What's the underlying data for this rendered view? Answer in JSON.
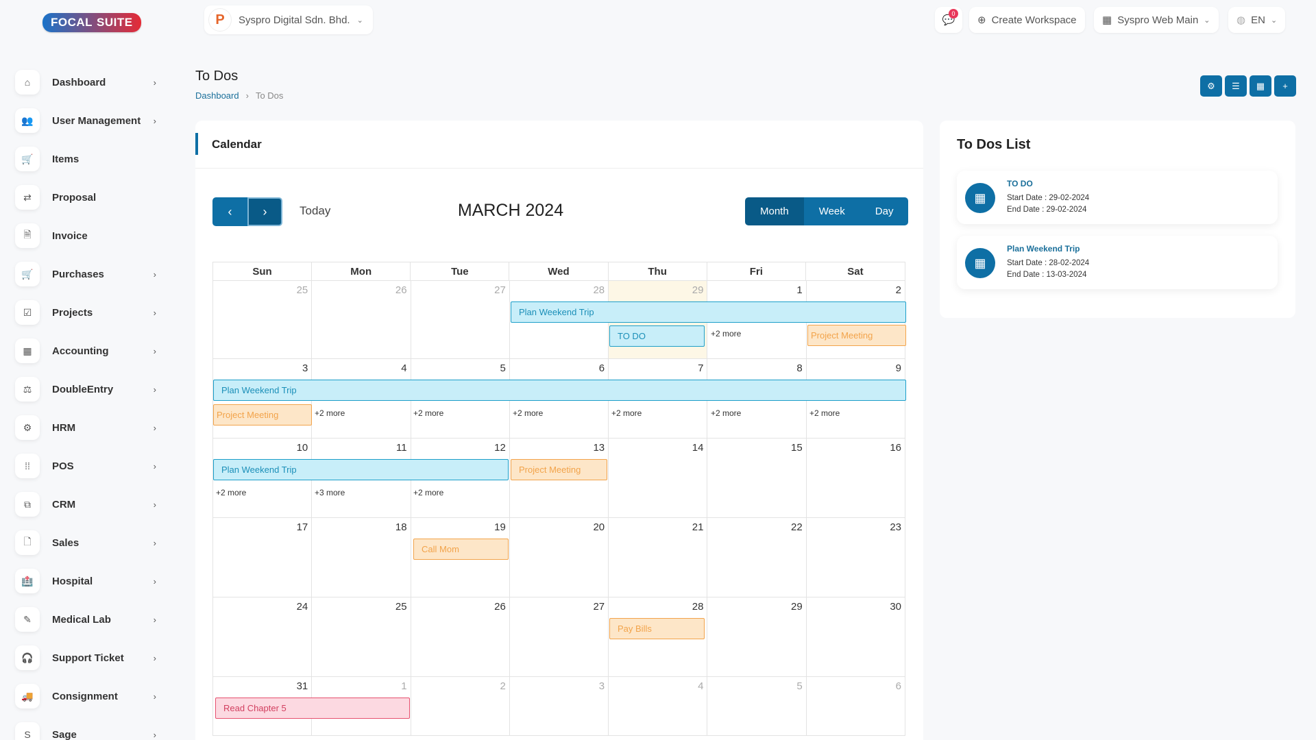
{
  "topbar": {
    "logo_left": "FOCAL",
    "logo_right": "SUITE",
    "company_name": "Syspro Digital Sdn. Bhd.",
    "message_count": "0",
    "create_workspace": "Create Workspace",
    "workspace_name": "Syspro Web Main",
    "language": "EN"
  },
  "sidebar": {
    "items": [
      {
        "label": "Dashboard",
        "icon": "home-icon"
      },
      {
        "label": "User Management",
        "icon": "users-icon"
      },
      {
        "label": "Items",
        "icon": "cart-icon"
      },
      {
        "label": "Proposal",
        "icon": "proposal-icon"
      },
      {
        "label": "Invoice",
        "icon": "invoice-icon"
      },
      {
        "label": "Purchases",
        "icon": "cart-icon"
      },
      {
        "label": "Projects",
        "icon": "checkbox-icon"
      },
      {
        "label": "Accounting",
        "icon": "grid-icon"
      },
      {
        "label": "DoubleEntry",
        "icon": "scale-icon"
      },
      {
        "label": "HRM",
        "icon": "hrm-icon"
      },
      {
        "label": "POS",
        "icon": "dots-grid-icon"
      },
      {
        "label": "CRM",
        "icon": "crm-icon"
      },
      {
        "label": "Sales",
        "icon": "document-icon"
      },
      {
        "label": "Hospital",
        "icon": "hospital-icon"
      },
      {
        "label": "Medical Lab",
        "icon": "syringe-icon"
      },
      {
        "label": "Support Ticket",
        "icon": "headset-icon"
      },
      {
        "label": "Consignment",
        "icon": "truck-icon"
      },
      {
        "label": "Sage",
        "icon": "sage-icon"
      }
    ]
  },
  "header": {
    "title": "To Dos",
    "breadcrumb_home": "Dashboard",
    "breadcrumb_sep": "›",
    "breadcrumb_current": "To Dos"
  },
  "calendar": {
    "section_title": "Calendar",
    "today_label": "Today",
    "month_title": "MARCH 2024",
    "views": {
      "month": "Month",
      "week": "Week",
      "day": "Day"
    },
    "weekdays": [
      "Sun",
      "Mon",
      "Tue",
      "Wed",
      "Thu",
      "Fri",
      "Sat"
    ],
    "weeks": [
      [
        "25",
        "26",
        "27",
        "28",
        "29",
        "1",
        "2"
      ],
      [
        "3",
        "4",
        "5",
        "6",
        "7",
        "8",
        "9"
      ],
      [
        "10",
        "11",
        "12",
        "13",
        "14",
        "15",
        "16"
      ],
      [
        "17",
        "18",
        "19",
        "20",
        "21",
        "22",
        "23"
      ],
      [
        "24",
        "25",
        "26",
        "27",
        "28",
        "29",
        "30"
      ],
      [
        "31",
        "1",
        "2",
        "3",
        "4",
        "5",
        "6"
      ]
    ],
    "events": {
      "plan_weekend_trip": "Plan Weekend Trip",
      "to_do": "TO DO",
      "project_meeting": "Project Meeting",
      "call_mom": "Call Mom",
      "pay_bills": "Pay Bills",
      "read_chapter": "Read Chapter 5"
    },
    "more": {
      "two": "+2 more",
      "three": "+3 more"
    }
  },
  "todos": {
    "title": "To Dos List",
    "items": [
      {
        "title": "TO DO",
        "start": "Start Date : 29-02-2024",
        "end": "End Date : 29-02-2024"
      },
      {
        "title": "Plan Weekend Trip",
        "start": "Start Date : 28-02-2024",
        "end": "End Date : 13-03-2024"
      }
    ]
  },
  "colors": {
    "primary": "#0e6fa5",
    "event_blue": "#c8eef9",
    "event_orange": "#fde6c8",
    "event_pink": "#fcd9e1"
  }
}
